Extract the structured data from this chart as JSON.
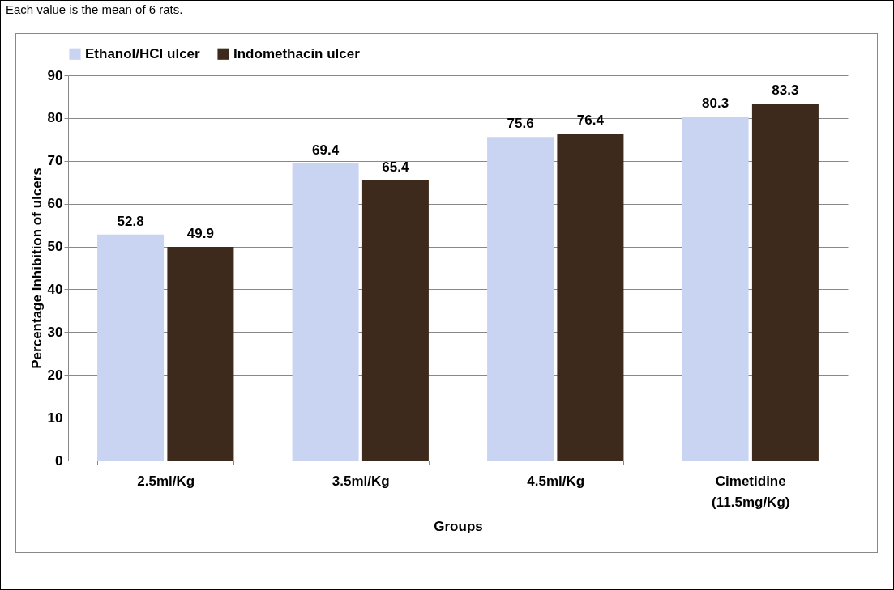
{
  "chart_data": {
    "type": "bar",
    "xlabel": "Groups",
    "ylabel": "Percentage Inhibition of ulcers",
    "annotations": [
      "Each value is the mean of 6 rats."
    ],
    "categories": [
      "2.5ml/Kg",
      "3.5ml/Kg",
      "4.5ml/Kg",
      "Cimetidine (11.5mg/Kg)"
    ],
    "series": [
      {
        "name": "Ethanol/HCl ulcer",
        "color": "#c9d4f2",
        "values": [
          52.8,
          69.4,
          75.6,
          80.3
        ]
      },
      {
        "name": "Indomethacin ulcer",
        "color": "#3d2a1c",
        "values": [
          49.9,
          65.4,
          76.4,
          83.3
        ]
      }
    ],
    "ylim": [
      0,
      90
    ],
    "yticks": [
      0,
      10,
      20,
      30,
      40,
      50,
      60,
      70,
      80,
      90
    ],
    "grid": "y",
    "legend": "top",
    "data_labels": true
  }
}
